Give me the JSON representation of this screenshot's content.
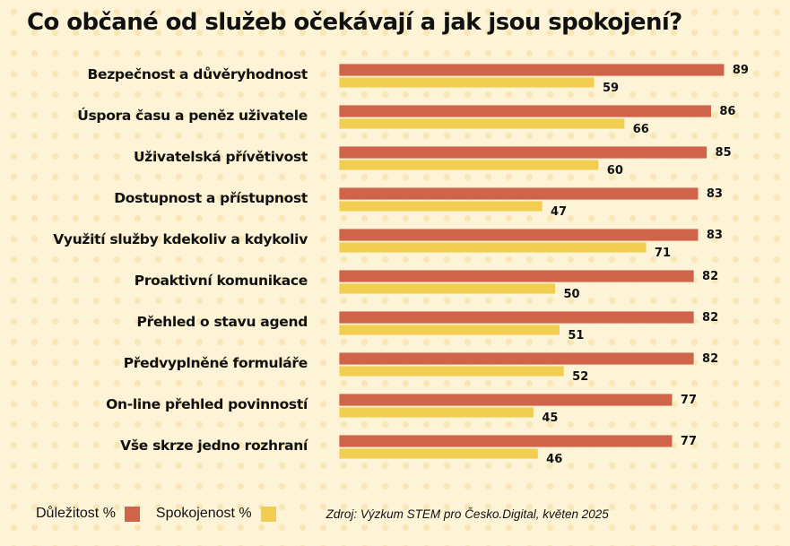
{
  "title": "Co občané od služeb očekávají a jak jsou spokojení?",
  "legend": {
    "items": [
      {
        "label": "Důležitost %",
        "color": "#CF644A"
      },
      {
        "label": "Spokojenost %",
        "color": "#F1CE50"
      }
    ],
    "source": "Zdroj: Výzkum STEM pro Česko.Digital, květen 2025"
  },
  "chart_data": {
    "type": "bar",
    "orientation": "horizontal",
    "title": "Co občané od služeb očekávají a jak jsou spokojení?",
    "xlabel": "",
    "ylabel": "",
    "xlim": [
      0,
      100
    ],
    "grid": false,
    "legend_position": "bottom-left",
    "categories": [
      "Bezpečnost a důvěryhodnost",
      "Úspora času a peněz uživatele",
      "Uživatelská přívětivost",
      "Dostupnost a přístupnost",
      "Využití služby kdekoliv a kdykoliv",
      "Proaktivní komunikace",
      "Přehled o stavu agend",
      "Předvyplněné formuláře",
      "On-line přehled povinností",
      "Vše skrze jedno rozhraní"
    ],
    "series": [
      {
        "name": "Důležitost %",
        "color": "#CF644A",
        "values": [
          89,
          86,
          85,
          83,
          83,
          82,
          82,
          82,
          77,
          77
        ]
      },
      {
        "name": "Spokojenost %",
        "color": "#F1CE50",
        "values": [
          59,
          66,
          60,
          47,
          71,
          50,
          51,
          52,
          45,
          46
        ]
      }
    ],
    "annotations": [
      "Zdroj: Výzkum STEM pro Česko.Digital, květen 2025"
    ]
  }
}
